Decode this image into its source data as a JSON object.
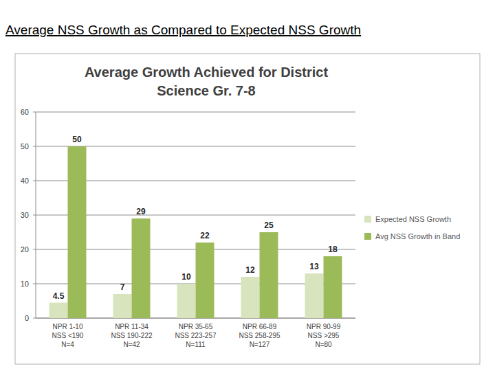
{
  "heading": "Average NSS Growth as Compared to Expected NSS Growth",
  "chart_data": {
    "type": "bar",
    "title": "Average Growth Achieved for District\nScience Gr. 7-8",
    "categories": [
      "NPR 1-10\nNSS <190\nN=4",
      "NPR 11-34\nNSS 190-222\nN=42",
      "NPR 35-65\nNSS 223-257\nN=111",
      "NPR 66-89\nNSS 258-295\nN=127",
      "NPR 90-99\nNSS >295\nN=80"
    ],
    "series": [
      {
        "name": "Expected NSS Growth",
        "color": "#d7e4bd",
        "values": [
          4.5,
          7,
          10,
          12,
          13
        ]
      },
      {
        "name": "Avg NSS Growth in Band",
        "color": "#9bbb59",
        "values": [
          50,
          29,
          22,
          25,
          18
        ]
      }
    ],
    "ylim": [
      0,
      60
    ],
    "yticks": [
      0,
      10,
      20,
      30,
      40,
      50,
      60
    ],
    "grid": true,
    "legend": "right",
    "data_labels": true
  }
}
